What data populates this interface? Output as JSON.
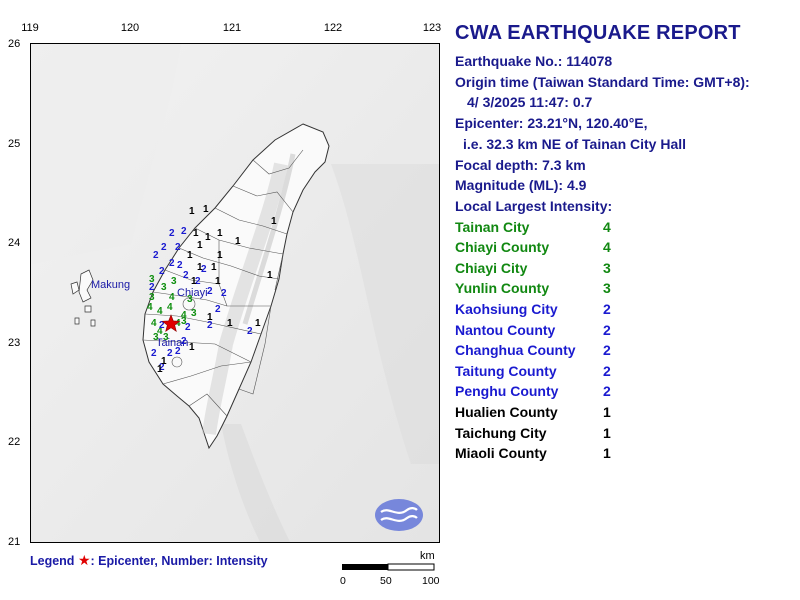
{
  "map": {
    "lon_ticks": [
      "119",
      "120",
      "121",
      "122",
      "123"
    ],
    "lat_ticks": [
      "26",
      "25",
      "24",
      "23",
      "22",
      "21"
    ],
    "place_labels": {
      "makung": "Makung",
      "chiayi": "Chiayi",
      "tainan": "Tainan"
    },
    "legend": {
      "prefix": "Legend",
      "star": "★",
      "text": ": Epicenter, Number: Intensity"
    },
    "scale": {
      "unit": "km",
      "labels": [
        "0",
        "50",
        "100"
      ]
    },
    "colors": {
      "intensity_1": "#000000",
      "intensity_2": "#1a1ad0",
      "intensity_3": "#0f8f0f",
      "intensity_4": "#0f8f0f",
      "epicenter": "#e00000",
      "logo": "#5b6fd8"
    },
    "station_groups": [
      {
        "value": "4",
        "level": 4,
        "count": 8
      },
      {
        "value": "3",
        "level": 3,
        "count": 9
      },
      {
        "value": "2",
        "level": 2,
        "count": 24
      },
      {
        "value": "1",
        "level": 1,
        "count": 21
      }
    ]
  },
  "report": {
    "title": "CWA EARTHQUAKE REPORT",
    "earthquake_no": "Earthquake No.: 114078",
    "origin_label": "Origin time (Taiwan Standard Time: GMT+8):",
    "origin_value": "4/ 3/2025 11:47: 0.7",
    "epicenter": "Epicenter: 23.21°N, 120.40°E,",
    "epicenter_desc": "i.e. 32.3 km NE of Tainan City Hall",
    "focal_depth": "Focal depth: 7.3 km",
    "magnitude": "Magnitude (ML): 4.9",
    "intensity_heading": "Local Largest Intensity:",
    "intensities": [
      {
        "name": "Tainan City",
        "value": "4",
        "color": "#118811"
      },
      {
        "name": "Chiayi County",
        "value": "4",
        "color": "#118811"
      },
      {
        "name": "Chiayi City",
        "value": "3",
        "color": "#118811"
      },
      {
        "name": "Yunlin County",
        "value": "3",
        "color": "#118811"
      },
      {
        "name": "Kaohsiung City",
        "value": "2",
        "color": "#1a1ad0"
      },
      {
        "name": "Nantou County",
        "value": "2",
        "color": "#1a1ad0"
      },
      {
        "name": "Changhua County",
        "value": "2",
        "color": "#1a1ad0"
      },
      {
        "name": "Taitung County",
        "value": "2",
        "color": "#1a1ad0"
      },
      {
        "name": "Penghu County",
        "value": "2",
        "color": "#1a1ad0"
      },
      {
        "name": "Hualien County",
        "value": "1",
        "color": "#000000"
      },
      {
        "name": "Taichung City",
        "value": "1",
        "color": "#000000"
      },
      {
        "name": "Miaoli County",
        "value": "1",
        "color": "#000000"
      }
    ]
  }
}
